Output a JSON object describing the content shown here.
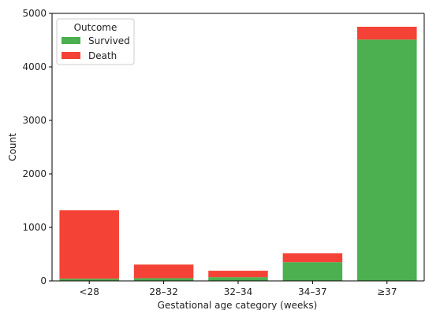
{
  "chart_data": {
    "type": "bar",
    "stacked": true,
    "categories": [
      "<28",
      "28–32",
      "32–34",
      "34–37",
      "≥37"
    ],
    "series": [
      {
        "name": "Survived",
        "color": "#4caf50",
        "values": [
          40,
          50,
          70,
          350,
          4510
        ]
      },
      {
        "name": "Death",
        "color": "#f44336",
        "values": [
          1280,
          255,
          120,
          165,
          240
        ]
      }
    ],
    "xlabel": "Gestational age category (weeks)",
    "ylabel": "Count",
    "ylim": [
      0,
      5000
    ],
    "yticks": [
      0,
      1000,
      2000,
      3000,
      4000,
      5000
    ],
    "legend": {
      "title": "Outcome",
      "placement": "top-left"
    },
    "grid": false
  }
}
